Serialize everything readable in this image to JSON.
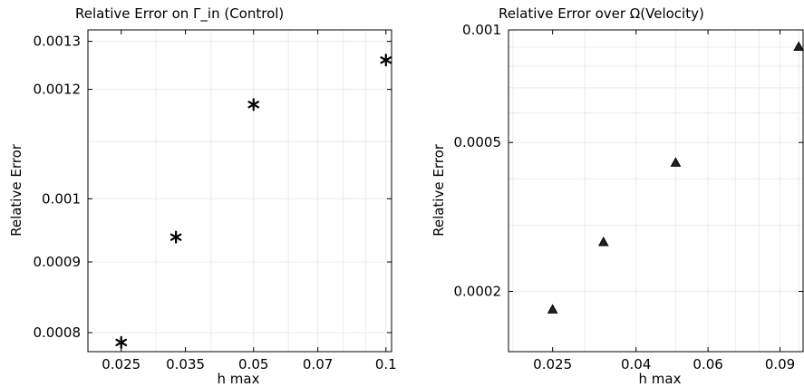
{
  "chart_data": [
    {
      "type": "scatter",
      "title": "Relative Error on Γ_in (Control)",
      "xlabel": "h max",
      "ylabel": "Relative Error",
      "xscale": "log",
      "yscale": "log",
      "xlim": [
        0.021,
        0.103
      ],
      "ylim": [
        0.000775,
        0.001325
      ],
      "xticks": [
        {
          "value": 0.025,
          "label": "0.025"
        },
        {
          "value": 0.035,
          "label": "0.035"
        },
        {
          "value": 0.05,
          "label": "0.05"
        },
        {
          "value": 0.07,
          "label": "0.07"
        },
        {
          "value": 0.1,
          "label": "0.1"
        }
      ],
      "yticks": [
        {
          "value": 0.0008,
          "label": "0.0008"
        },
        {
          "value": 0.0009,
          "label": "0.0009"
        },
        {
          "value": 0.001,
          "label": "0.001"
        },
        {
          "value": 0.0012,
          "label": "0.0012"
        },
        {
          "value": 0.0013,
          "label": "0.0013"
        }
      ],
      "marker": "asterisk",
      "grid": true,
      "points": [
        {
          "x": 0.025,
          "y": 0.000787
        },
        {
          "x": 0.0333,
          "y": 0.000938
        },
        {
          "x": 0.05,
          "y": 0.00117
        },
        {
          "x": 0.1,
          "y": 0.00126
        }
      ]
    },
    {
      "type": "scatter",
      "title": "Relative Error over Ω(Velocity)",
      "xlabel": "h max",
      "ylabel": "Relative Error",
      "xscale": "log",
      "yscale": "log",
      "xlim": [
        0.0195,
        0.1025
      ],
      "ylim": [
        0.000138,
        0.001
      ],
      "xticks": [
        {
          "value": 0.025,
          "label": "0.025"
        },
        {
          "value": 0.04,
          "label": "0.04"
        },
        {
          "value": 0.06,
          "label": "0.06"
        },
        {
          "value": 0.09,
          "label": "0.09"
        }
      ],
      "yticks": [
        {
          "value": 0.0002,
          "label": "0.0002"
        },
        {
          "value": 0.0005,
          "label": "0.0005"
        },
        {
          "value": 0.001,
          "label": "0.001"
        }
      ],
      "marker": "triangle",
      "grid": true,
      "points": [
        {
          "x": 0.025,
          "y": 0.000179
        },
        {
          "x": 0.0333,
          "y": 0.000271
        },
        {
          "x": 0.05,
          "y": 0.000442
        },
        {
          "x": 0.1,
          "y": 0.000902
        }
      ]
    }
  ]
}
